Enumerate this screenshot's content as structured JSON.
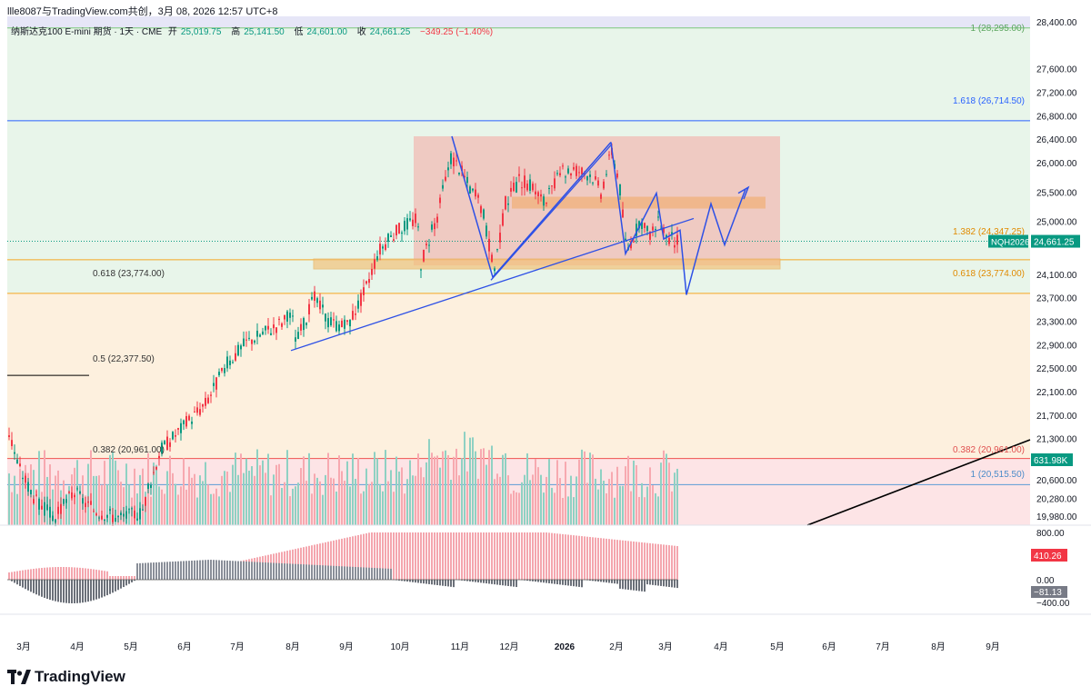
{
  "header": {
    "text": "llle8087与TradingView.com共创，3月 08, 2026 12:57 UTC+8"
  },
  "legend": {
    "symbol": "纳斯达克100 E-mini 期货 · 1天 · CME",
    "open_label": "开",
    "open": "25,019.75",
    "high_label": "高",
    "high": "25,141.50",
    "low_label": "低",
    "low": "24,601.00",
    "close_label": "收",
    "close": "24,661.25",
    "change": "−349.25 (−1.40%)"
  },
  "price_axis": {
    "ticks": [
      "28,400.00",
      "27,600.00",
      "27,200.00",
      "26,800.00",
      "26,400.00",
      "26,000.00",
      "25,500.00",
      "25,000.00",
      "24,100.00",
      "23,700.00",
      "23,300.00",
      "22,900.00",
      "22,500.00",
      "22,100.00",
      "21,700.00",
      "21,300.00",
      "20,600.00",
      "20,280.00",
      "19,980.00"
    ],
    "price_badge_label": "NQH2026",
    "price_badge_value": "24,661.25",
    "volume_badge": "631.98K"
  },
  "fib_labels": {
    "f1_top": "1 (28,295.00)",
    "f1618": "1.618 (26,714.50)",
    "f1382": "1.382 (24,347.25)",
    "f0618_right": "0.618 (23,774.00)",
    "f0618_left": "0.618 (23,774.00)",
    "f05": "0.5 (22,377.50)",
    "f0382_left": "0.382 (20,961.00)",
    "f0382_right": "0.382 (20,961.00)",
    "f1_bottom": "1 (20,515.50)"
  },
  "oscillator": {
    "ticks": [
      "800.00",
      "−400.00"
    ],
    "badge_pos": "410.26",
    "badge_zero": "0.00",
    "badge_neg": "−81.13"
  },
  "time_axis": [
    "3月",
    "4月",
    "5月",
    "6月",
    "7月",
    "8月",
    "9月",
    "10月",
    "11月",
    "12月",
    "2026",
    "2月",
    "3月",
    "4月",
    "5月",
    "6月",
    "7月",
    "8月",
    "9月"
  ],
  "brand": "TradingView",
  "colors": {
    "up": "#089981",
    "down": "#f23645",
    "drawing": "#2d50e6",
    "fib_blue": "#2962ff",
    "fib_orange": "#f5a623",
    "fib_green": "#4caf50"
  },
  "chart_data": {
    "type": "candlestick",
    "price_range": [
      19900,
      28500
    ],
    "fib_levels": [
      {
        "level": "1",
        "price": 28295.0
      },
      {
        "level": "1.618",
        "price": 26714.5
      },
      {
        "level": "1.382",
        "price": 24347.25
      },
      {
        "level": "0.618",
        "price": 23774.0
      },
      {
        "level": "0.5",
        "price": 22377.5
      },
      {
        "level": "0.382",
        "price": 20961.0
      },
      {
        "level": "1",
        "price": 20515.5
      }
    ],
    "last_price": 24661.25,
    "last_volume": "631.98K",
    "oscillator_last": [
      410.26,
      0.0,
      -81.13
    ]
  }
}
